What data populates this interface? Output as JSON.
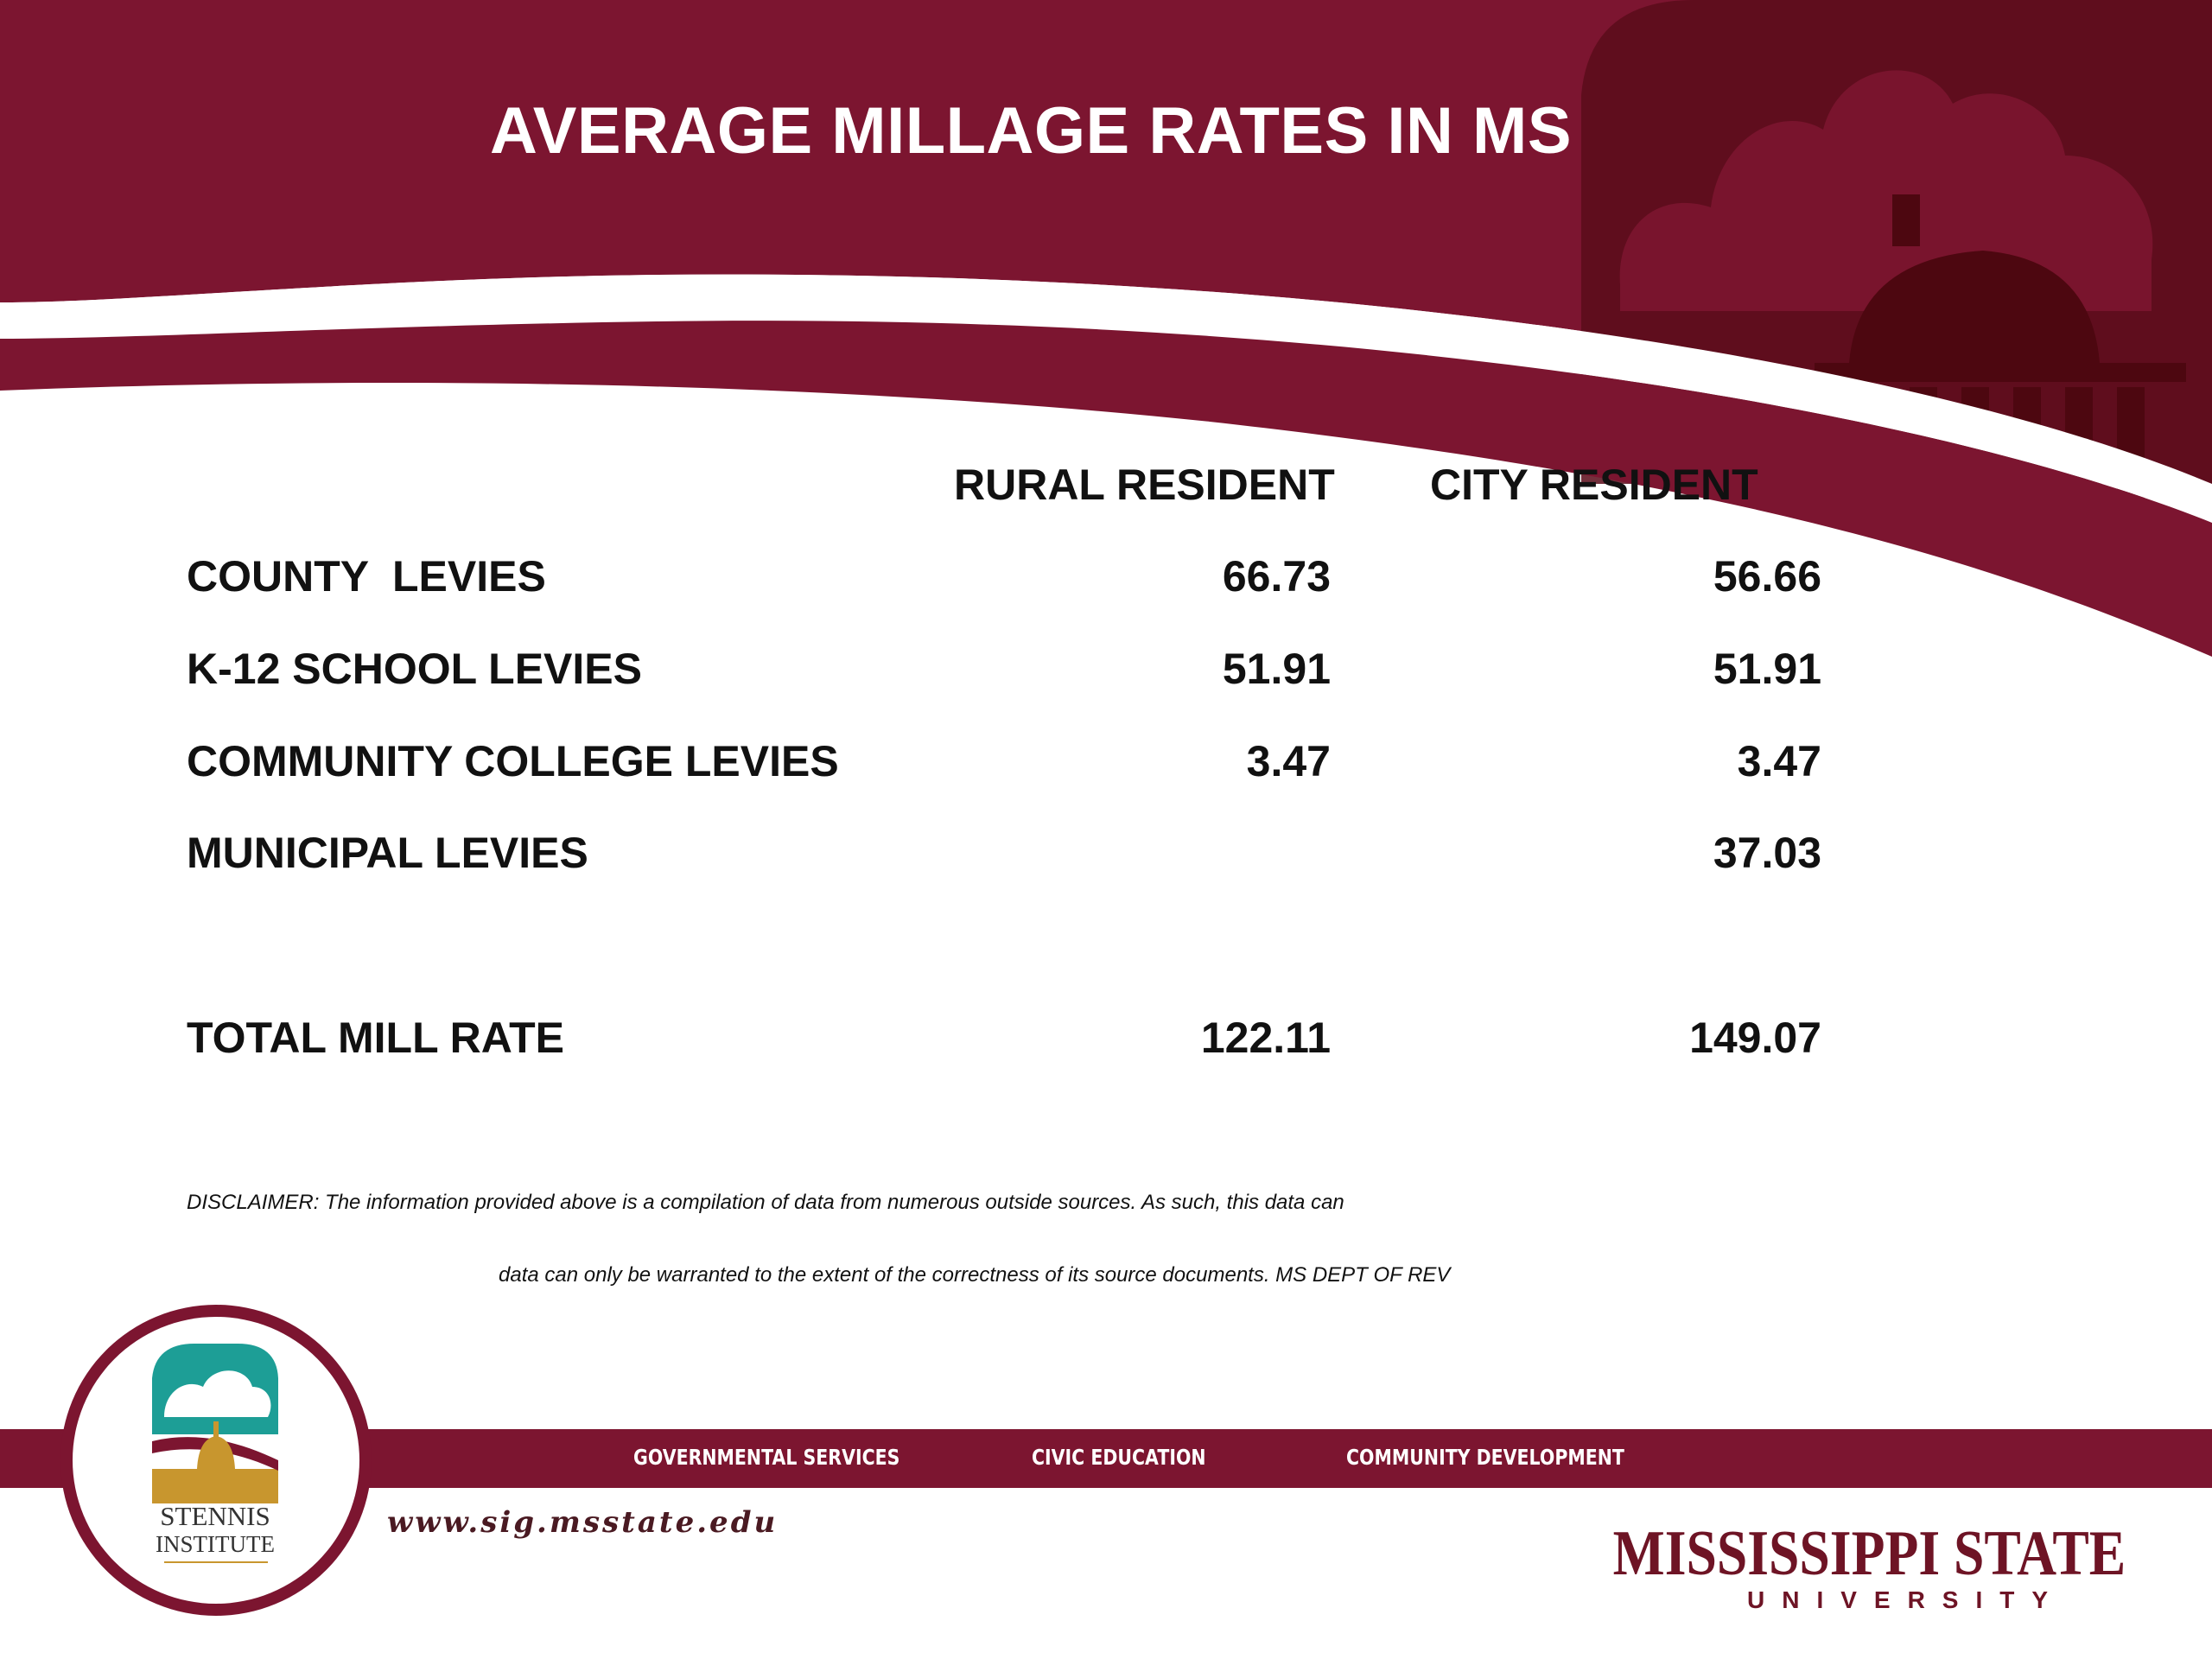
{
  "slide": {
    "title": "AVERAGE MILLAGE RATES IN MS"
  },
  "table": {
    "columns": [
      "RURAL RESIDENT",
      "CITY RESIDENT"
    ],
    "rows": [
      {
        "label": "COUNTY  LEVIES",
        "rural": "66.73",
        "city": "56.66"
      },
      {
        "label": "K-12 SCHOOL LEVIES",
        "rural": "51.91",
        "city": "51.91"
      },
      {
        "label": "COMMUNITY COLLEGE LEVIES",
        "rural": "3.47",
        "city": "3.47"
      },
      {
        "label": "MUNICIPAL LEVIES",
        "rural": "",
        "city": "37.03"
      }
    ],
    "total": {
      "label": "TOTAL MILL RATE",
      "rural": "122.11",
      "city": "149.07"
    }
  },
  "disclaimer": {
    "line1": "DISCLAIMER:  The information provided above is a compilation of data from numerous outside sources.  As such, this data can",
    "line2": "data can only be warranted to the extent of the correctness of its source documents. MS DEPT OF REV"
  },
  "footer": {
    "nav": [
      "GOVERNMENTAL SERVICES",
      "CIVIC EDUCATION",
      "COMMUNITY DEVELOPMENT"
    ],
    "url": "www.sig.msstate.edu",
    "logo_left": {
      "line1": "STENNIS",
      "line2": "INSTITUTE"
    },
    "logo_right": {
      "name": "MISSISSIPPI STATE",
      "sub": "UNIVERSITY"
    }
  },
  "colors": {
    "maroon": "#7c1530",
    "dark_maroon": "#4d0710",
    "teal": "#1d9e96",
    "gold": "#c8962e"
  },
  "icons": [
    "capitol-dome-watermark",
    "stennis-institute-seal"
  ]
}
